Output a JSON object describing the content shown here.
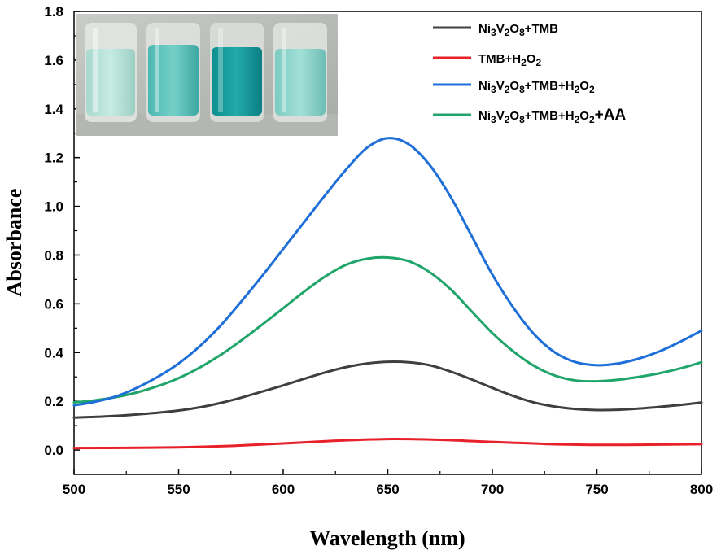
{
  "chart_data": {
    "type": "line",
    "xlabel": "Wavelength (nm)",
    "ylabel": "Absorbance",
    "xlim": [
      500,
      800
    ],
    "ylim": [
      -0.1,
      1.8
    ],
    "xticks": [
      "500",
      "550",
      "600",
      "650",
      "700",
      "750",
      "800"
    ],
    "yticks": [
      "0.0",
      "0.2",
      "0.4",
      "0.6",
      "0.8",
      "1.0",
      "1.2",
      "1.4",
      "1.6",
      "1.8"
    ],
    "grid": false,
    "legend_position": "top-right",
    "inset": "photo of four vials containing light-to-deep blue-green solutions",
    "series": [
      {
        "name": "Ni3V2O8+TMB",
        "legend_parts": [
          [
            "Ni",
            ""
          ],
          [
            "3",
            "sub"
          ],
          [
            "V",
            ""
          ],
          [
            "2",
            "sub"
          ],
          [
            "O",
            ""
          ],
          [
            "8",
            "sub"
          ],
          [
            "+TMB",
            ""
          ]
        ],
        "color": "#3f3f3f",
        "x": [
          500,
          510,
          520,
          530,
          540,
          550,
          560,
          570,
          580,
          590,
          600,
          610,
          620,
          630,
          640,
          650,
          660,
          670,
          680,
          690,
          700,
          710,
          720,
          730,
          740,
          750,
          760,
          770,
          780,
          790,
          800
        ],
        "y": [
          0.133,
          0.136,
          0.14,
          0.146,
          0.153,
          0.162,
          0.175,
          0.193,
          0.215,
          0.24,
          0.265,
          0.292,
          0.318,
          0.34,
          0.355,
          0.362,
          0.36,
          0.348,
          0.322,
          0.29,
          0.255,
          0.222,
          0.195,
          0.178,
          0.168,
          0.164,
          0.165,
          0.17,
          0.177,
          0.185,
          0.195
        ]
      },
      {
        "name": "TMB+H2O2",
        "legend_parts": [
          [
            "TMB+H",
            ""
          ],
          [
            "2",
            "sub"
          ],
          [
            "O",
            ""
          ],
          [
            "2",
            "sub"
          ]
        ],
        "color": "#e8202a",
        "x": [
          500,
          525,
          550,
          575,
          600,
          625,
          650,
          675,
          700,
          725,
          750,
          775,
          800
        ],
        "y": [
          0.008,
          0.009,
          0.011,
          0.017,
          0.027,
          0.038,
          0.045,
          0.042,
          0.033,
          0.025,
          0.021,
          0.022,
          0.024
        ]
      },
      {
        "name": "Ni3V2O8+TMB+H2O2",
        "legend_parts": [
          [
            "Ni",
            ""
          ],
          [
            "3",
            "sub"
          ],
          [
            "V",
            ""
          ],
          [
            "2",
            "sub"
          ],
          [
            "O",
            ""
          ],
          [
            "8",
            "sub"
          ],
          [
            "+TMB+H",
            ""
          ],
          [
            "2",
            "sub"
          ],
          [
            "O",
            ""
          ],
          [
            "2",
            "sub"
          ]
        ],
        "color": "#1f6fd8",
        "x": [
          500,
          510,
          520,
          530,
          540,
          550,
          560,
          570,
          580,
          590,
          600,
          610,
          620,
          630,
          640,
          650,
          660,
          670,
          680,
          690,
          700,
          710,
          720,
          730,
          740,
          750,
          760,
          770,
          780,
          790,
          800
        ],
        "y": [
          0.183,
          0.198,
          0.22,
          0.255,
          0.3,
          0.355,
          0.425,
          0.51,
          0.61,
          0.715,
          0.825,
          0.935,
          1.045,
          1.15,
          1.24,
          1.28,
          1.255,
          1.17,
          1.04,
          0.88,
          0.72,
          0.585,
          0.475,
          0.4,
          0.36,
          0.348,
          0.355,
          0.375,
          0.405,
          0.445,
          0.49
        ]
      },
      {
        "name": "Ni3V2O8+TMB+H2O2+AA",
        "legend_parts": [
          [
            "Ni",
            ""
          ],
          [
            "3",
            "sub"
          ],
          [
            "V",
            ""
          ],
          [
            "2",
            "sub"
          ],
          [
            "O",
            ""
          ],
          [
            "8",
            "sub"
          ],
          [
            "+TMB+H",
            ""
          ],
          [
            "2",
            "sub"
          ],
          [
            "O",
            ""
          ],
          [
            "2",
            "sub"
          ],
          [
            "+AA",
            "big"
          ]
        ],
        "color": "#1fa56a",
        "x": [
          500,
          510,
          520,
          530,
          540,
          550,
          560,
          570,
          580,
          590,
          600,
          610,
          620,
          630,
          640,
          650,
          660,
          670,
          680,
          690,
          700,
          710,
          720,
          730,
          740,
          750,
          760,
          770,
          780,
          790,
          800
        ],
        "y": [
          0.195,
          0.204,
          0.217,
          0.236,
          0.262,
          0.295,
          0.338,
          0.39,
          0.45,
          0.515,
          0.582,
          0.65,
          0.712,
          0.76,
          0.785,
          0.79,
          0.775,
          0.73,
          0.66,
          0.57,
          0.48,
          0.405,
          0.345,
          0.305,
          0.285,
          0.282,
          0.288,
          0.3,
          0.315,
          0.335,
          0.36
        ]
      }
    ]
  }
}
